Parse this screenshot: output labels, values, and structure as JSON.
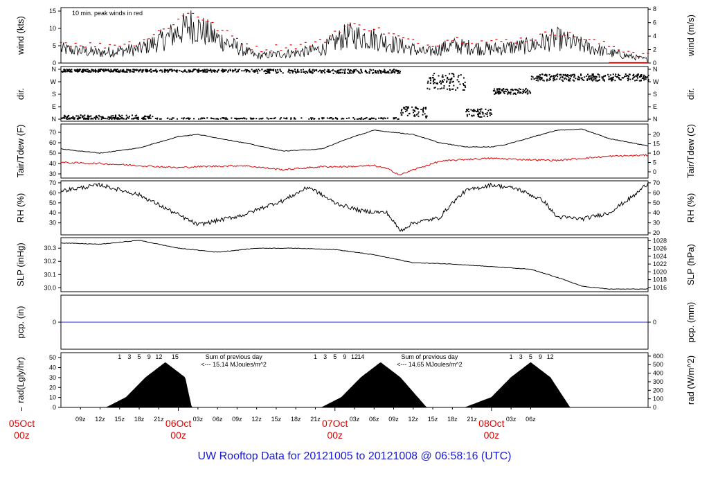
{
  "title": "UW Rooftop Data for 20121005  to  20121008 @ 06:58:16  (UTC)",
  "chart_data": [
    {
      "type": "line",
      "panel": "wind",
      "ylabel_left": "wind (kts)",
      "ylabel_right": "wind (m/s)",
      "left_ticks": [
        "0",
        "5",
        "10",
        "15"
      ],
      "right_ticks": [
        "0",
        "2",
        "4",
        "6",
        "8"
      ],
      "ylim": [
        0,
        16
      ],
      "annotation": "10 min. peak winds in red",
      "series": [
        {
          "x": [
            0,
            6,
            12,
            16,
            20,
            24,
            30,
            36,
            40,
            42,
            44,
            48,
            54,
            56,
            60,
            66,
            72,
            76,
            78,
            84,
            90
          ],
          "values": [
            4,
            3,
            4,
            7,
            11,
            7,
            2,
            3,
            4,
            6,
            8,
            7,
            4,
            3,
            5,
            4,
            5,
            7,
            6,
            3,
            1
          ]
        },
        {
          "x": [
            0,
            6,
            12,
            16,
            20,
            24,
            30,
            36,
            40,
            42,
            44,
            48,
            54,
            56,
            60,
            66,
            72,
            76,
            78,
            84,
            90
          ],
          "values": [
            6,
            5,
            6,
            10,
            15,
            10,
            4,
            5,
            6,
            9,
            11,
            10,
            6,
            5,
            7,
            6,
            7,
            9,
            8,
            5,
            2
          ]
        }
      ]
    },
    {
      "type": "scatter",
      "panel": "dir",
      "ylabel_left": "dir.",
      "ylabel_right": "dir.",
      "left_ticks": [
        "N",
        "E",
        "S",
        "W",
        "N"
      ],
      "right_ticks": [
        "N",
        "E",
        "S",
        "W",
        "N"
      ]
    },
    {
      "type": "line",
      "panel": "temperature",
      "ylabel_left": "Tair/Tdew (F)",
      "ylabel_right": "Tair/Tdew (C)",
      "left_ticks": [
        "30",
        "40",
        "50",
        "60",
        "70"
      ],
      "right_ticks": [
        "0",
        "5",
        "10",
        "15",
        "20"
      ],
      "ylim": [
        26,
        78
      ],
      "series": [
        {
          "x": [
            0,
            6,
            12,
            18,
            21,
            28,
            34,
            40,
            44,
            48,
            54,
            58,
            62,
            66,
            68,
            72,
            76,
            80,
            84,
            90
          ],
          "values": [
            54,
            50,
            55,
            66,
            68,
            60,
            52,
            54,
            64,
            72,
            68,
            60,
            56,
            56,
            58,
            65,
            72,
            73,
            64,
            57
          ]
        },
        {
          "x": [
            0,
            6,
            12,
            18,
            21,
            28,
            34,
            40,
            44,
            48,
            50,
            52,
            54,
            58,
            62,
            66,
            70,
            76,
            80,
            84,
            90
          ],
          "values": [
            41,
            40,
            38,
            36,
            37,
            38,
            34,
            37,
            37,
            38,
            35,
            29,
            34,
            42,
            44,
            45,
            44,
            43,
            45,
            47,
            48
          ]
        }
      ]
    },
    {
      "type": "line",
      "panel": "rh",
      "ylabel_left": "RH (%)",
      "ylabel_right": "RH (%)",
      "left_ticks": [
        "30",
        "40",
        "50",
        "60",
        "70"
      ],
      "right_ticks": [
        "20",
        "30",
        "40",
        "50",
        "60",
        "70"
      ],
      "ylim": [
        18,
        72
      ],
      "series": [
        {
          "x": [
            0,
            6,
            12,
            18,
            21,
            28,
            32,
            34,
            38,
            42,
            46,
            50,
            52,
            54,
            58,
            60,
            62,
            66,
            70,
            74,
            76,
            80,
            84,
            88,
            90
          ],
          "values": [
            62,
            68,
            58,
            38,
            28,
            38,
            48,
            52,
            66,
            50,
            42,
            40,
            22,
            30,
            35,
            50,
            62,
            68,
            64,
            52,
            36,
            34,
            40,
            58,
            70
          ]
        }
      ]
    },
    {
      "type": "line",
      "panel": "slp",
      "ylabel_left": "SLP (inHg)",
      "ylabel_right": "SLP (hPa)",
      "left_ticks": [
        "30.0",
        "30.1",
        "30.2",
        "30.3"
      ],
      "right_ticks": [
        "1016",
        "1018",
        "1020",
        "1022",
        "1024",
        "1026",
        "1028"
      ],
      "ylim": [
        29.97,
        30.38
      ],
      "series": [
        {
          "x": [
            0,
            6,
            12,
            18,
            24,
            30,
            36,
            42,
            48,
            54,
            60,
            66,
            72,
            76,
            80,
            84,
            90
          ],
          "values": [
            30.34,
            30.33,
            30.36,
            30.3,
            30.27,
            30.3,
            30.3,
            30.29,
            30.25,
            30.19,
            30.18,
            30.16,
            30.14,
            30.08,
            30.01,
            29.99,
            29.99
          ]
        }
      ]
    },
    {
      "type": "line",
      "panel": "precip",
      "ylabel_left": "pcp. (in)",
      "ylabel_right": "pcp. (mm)",
      "left_ticks": [
        "0"
      ],
      "right_ticks": [
        "0"
      ],
      "ylim": [
        -1,
        1
      ],
      "series": [
        {
          "x": [
            0,
            90
          ],
          "values": [
            0,
            0
          ]
        }
      ]
    },
    {
      "type": "area",
      "panel": "radiation",
      "ylabel_left": "rad(Lgly/hr)",
      "ylabel_right": "rad (W/m^2)",
      "left_ticks": [
        "0",
        "10",
        "20",
        "30",
        "40",
        "50"
      ],
      "right_ticks": [
        "0",
        "100",
        "200",
        "300",
        "400",
        "500",
        "600"
      ],
      "ylim": [
        0,
        55
      ],
      "series": [
        {
          "x": [
            7,
            10,
            13,
            16,
            19,
            20,
            24,
            27,
            30,
            37,
            40,
            43,
            46,
            49,
            52,
            56,
            59,
            62,
            66,
            69,
            72,
            75,
            78,
            83
          ],
          "values": [
            0,
            10,
            30,
            45,
            30,
            0,
            0,
            0,
            0,
            0,
            0,
            10,
            30,
            45,
            30,
            0,
            0,
            0,
            10,
            30,
            45,
            30,
            0,
            0
          ]
        }
      ],
      "hour_marks": [
        {
          "x": 9.0,
          "label": "1"
        },
        {
          "x": 10.5,
          "label": "3"
        },
        {
          "x": 12.0,
          "label": "5"
        },
        {
          "x": 13.5,
          "label": "9"
        },
        {
          "x": 15.0,
          "label": "12"
        },
        {
          "x": 17.5,
          "label": "15"
        },
        {
          "x": 39.0,
          "label": "1"
        },
        {
          "x": 40.5,
          "label": "3"
        },
        {
          "x": 42.0,
          "label": "5"
        },
        {
          "x": 43.5,
          "label": "9"
        },
        {
          "x": 45.0,
          "label": "12"
        },
        {
          "x": 46.0,
          "label": "14"
        },
        {
          "x": 69.0,
          "label": "1"
        },
        {
          "x": 70.5,
          "label": "3"
        },
        {
          "x": 72.0,
          "label": "5"
        },
        {
          "x": 73.5,
          "label": "9"
        },
        {
          "x": 75.0,
          "label": "12"
        }
      ],
      "annotations": [
        {
          "x": 26.5,
          "line1": "Sum of previous day",
          "line2": "<--- 15.14 MJoules/m^2"
        },
        {
          "x": 56.5,
          "line1": "Sum of previous day",
          "line2": "<--- 14.65 MJoules/m^2"
        }
      ]
    }
  ],
  "x_axis": {
    "tick_labels": [
      {
        "x": 3,
        "label": "09z"
      },
      {
        "x": 6,
        "label": "12z"
      },
      {
        "x": 9,
        "label": "15z"
      },
      {
        "x": 12,
        "label": "18z"
      },
      {
        "x": 15,
        "label": "21z"
      },
      {
        "x": 21,
        "label": "03z"
      },
      {
        "x": 24,
        "label": "06z"
      },
      {
        "x": 27,
        "label": "09z"
      },
      {
        "x": 30,
        "label": "12z"
      },
      {
        "x": 33,
        "label": "15z"
      },
      {
        "x": 36,
        "label": "18z"
      },
      {
        "x": 39,
        "label": "21z"
      },
      {
        "x": 45,
        "label": "03z"
      },
      {
        "x": 48,
        "label": "06z"
      },
      {
        "x": 51,
        "label": "09z"
      },
      {
        "x": 54,
        "label": "12z"
      },
      {
        "x": 57,
        "label": "15z"
      },
      {
        "x": 60,
        "label": "18z"
      },
      {
        "x": 63,
        "label": "21z"
      },
      {
        "x": 69,
        "label": "03z"
      },
      {
        "x": 72,
        "label": "06z"
      }
    ],
    "day_labels": [
      {
        "x": -6,
        "day": "05Oct",
        "hour": "00z"
      },
      {
        "x": 18,
        "day": "06Oct",
        "hour": "00z"
      },
      {
        "x": 42,
        "day": "07Oct",
        "hour": "00z"
      },
      {
        "x": 66,
        "day": "08Oct",
        "hour": "00z"
      }
    ]
  },
  "colors": {
    "frame": "#000000",
    "primary": "#000000",
    "peak": "#e00000",
    "dew": "#e00000",
    "precip": "#2020d0",
    "annotation": "#a020c0",
    "day_label": "#e00000",
    "footer": "#1a1ad6"
  }
}
